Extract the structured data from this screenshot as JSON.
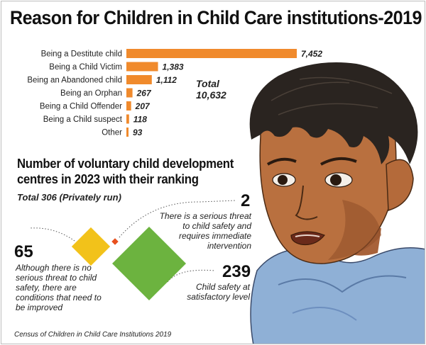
{
  "title": "Reason for Children in Child Care institutions-2019",
  "chart_data": [
    {
      "type": "bar",
      "orientation": "horizontal",
      "title": "Reason for Children in Child Care institutions-2019",
      "categories": [
        "Being a Destitute child",
        "Being a Child Victim",
        "Being an Abandoned child",
        "Being an Orphan",
        "Being a Child Offender",
        "Being a Child suspect",
        "Other"
      ],
      "values": [
        7452,
        1383,
        1112,
        267,
        207,
        118,
        93
      ],
      "value_labels": [
        "7,452",
        "1,383",
        "1,112",
        "267",
        "207",
        "118",
        "93"
      ],
      "total_label": "Total",
      "total_value": "10,632",
      "bar_color": "#f08a2c"
    },
    {
      "type": "diamond-area",
      "title": "Number of voluntary child development centres in 2023 with their ranking",
      "subtitle": "Total 306 (Privately run)",
      "items": [
        {
          "value": 2,
          "label": "2",
          "description": "There is a serious threat to child safety and requires immediate intervention",
          "color": "#e8501e"
        },
        {
          "value": 65,
          "label": "65",
          "description": "Although there is no serious threat to child safety, there are conditions that need to be improved",
          "color": "#f2c21a"
        },
        {
          "value": 239,
          "label": "239",
          "description": "Child safety at satisfactory level",
          "color": "#6cb33f"
        }
      ]
    }
  ],
  "source": "Census of Children in Child Care Institutions 2019"
}
